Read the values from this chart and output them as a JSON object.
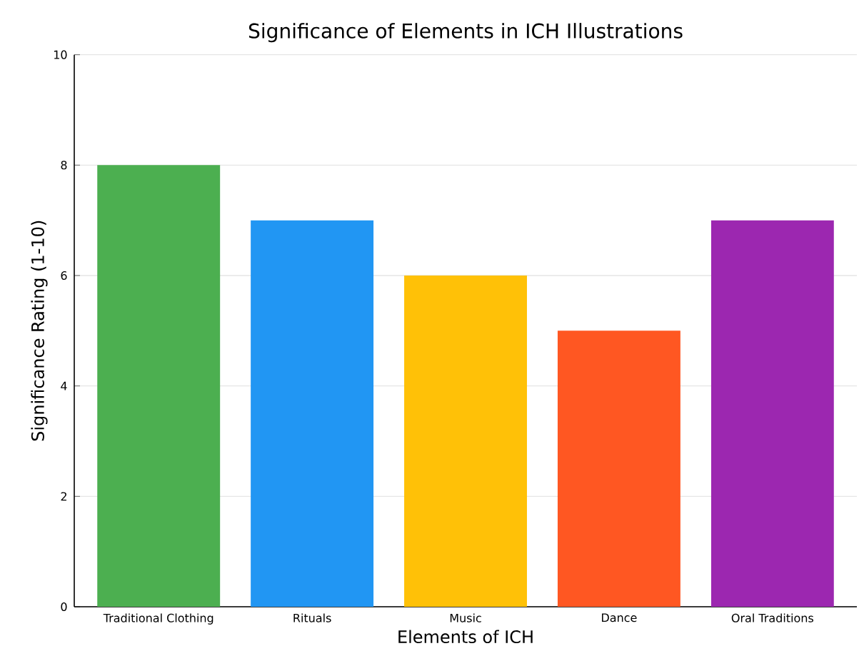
{
  "chart_data": {
    "type": "bar",
    "title": "Significance of Elements in ICH Illustrations",
    "xlabel": "Elements of ICH",
    "ylabel": "Significance Rating (1-10)",
    "categories": [
      "Traditional Clothing",
      "Rituals",
      "Music",
      "Dance",
      "Oral Traditions"
    ],
    "values": [
      8,
      7,
      6,
      5,
      7
    ],
    "colors": [
      "#4caf50",
      "#2196f3",
      "#ffc107",
      "#ff5722",
      "#9c27b0"
    ],
    "ylim": [
      0,
      10
    ],
    "yticks": [
      0,
      2,
      4,
      6,
      8,
      10
    ],
    "grid": "y"
  }
}
